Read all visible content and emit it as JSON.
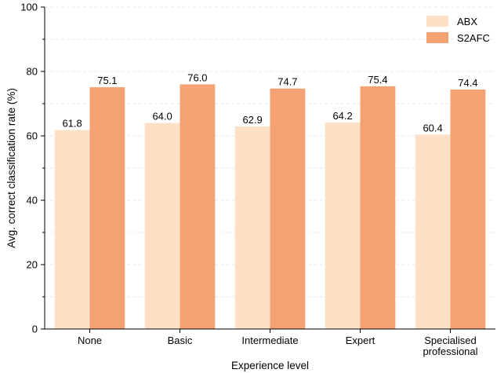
{
  "chart_data": {
    "type": "bar",
    "title": "",
    "xlabel": "Experience level",
    "ylabel": "Avg. correct classification rate (%)",
    "ylim": [
      0,
      100
    ],
    "yticks": [
      0,
      20,
      40,
      60,
      80,
      100
    ],
    "grid": "horizontal dashed",
    "legend_position": "top-right",
    "categories": [
      [
        "None"
      ],
      [
        "Basic"
      ],
      [
        "Intermediate"
      ],
      [
        "Expert"
      ],
      [
        "Specialised",
        "professional"
      ]
    ],
    "series": [
      {
        "name": "ABX",
        "color": "#fde0c5",
        "values": [
          61.8,
          64.0,
          62.9,
          64.2,
          60.4
        ],
        "labels": [
          "61.8",
          "64.0",
          "62.9",
          "64.2",
          "60.4"
        ]
      },
      {
        "name": "S2AFC",
        "color": "#f4a173",
        "values": [
          75.1,
          76.0,
          74.7,
          75.4,
          74.4
        ],
        "labels": [
          "75.1",
          "76.0",
          "74.7",
          "75.4",
          "74.4"
        ]
      }
    ]
  }
}
